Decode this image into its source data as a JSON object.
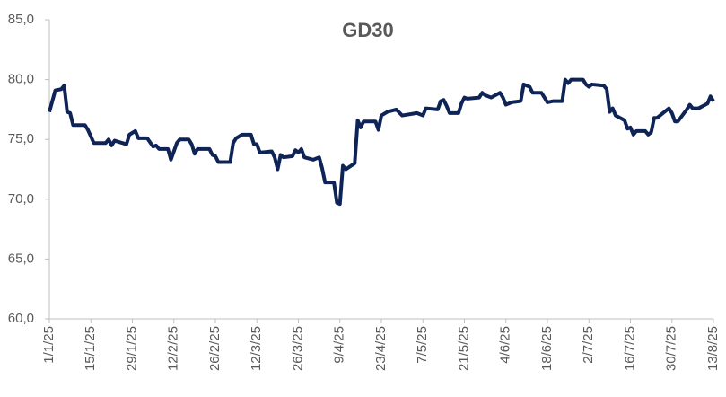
{
  "chart_data": {
    "type": "line",
    "title": "GD30",
    "x": [
      "1/1/25",
      "3/1/25",
      "5/1/25",
      "6/1/25",
      "7/1/25",
      "8/1/25",
      "9/1/25",
      "13/1/25",
      "14/1/25",
      "16/1/25",
      "20/1/25",
      "21/1/25",
      "22/1/25",
      "23/1/25",
      "27/1/25",
      "28/1/25",
      "30/1/25",
      "31/1/25",
      "3/2/25",
      "5/2/25",
      "6/2/25",
      "7/2/25",
      "10/2/25",
      "11/2/25",
      "13/2/25",
      "14/2/25",
      "17/2/25",
      "18/2/25",
      "19/2/25",
      "20/2/25",
      "24/2/25",
      "25/2/25",
      "26/2/25",
      "27/2/25",
      "3/3/25",
      "4/3/25",
      "5/3/25",
      "7/3/25",
      "10/3/25",
      "11/3/25",
      "12/3/25",
      "13/3/25",
      "17/3/25",
      "18/3/25",
      "19/3/25",
      "20/3/25",
      "21/3/25",
      "24/3/25",
      "25/3/25",
      "26/3/25",
      "27/3/25",
      "28/3/25",
      "31/3/25",
      "2/4/25",
      "3/4/25",
      "4/4/25",
      "7/4/25",
      "8/4/25",
      "9/4/25",
      "10/4/25",
      "11/4/25",
      "14/4/25",
      "15/4/25",
      "16/4/25",
      "17/4/25",
      "21/4/25",
      "22/4/25",
      "23/4/25",
      "25/4/25",
      "28/4/25",
      "30/4/25",
      "5/5/25",
      "7/5/25",
      "8/5/25",
      "12/5/25",
      "13/5/25",
      "14/5/25",
      "15/5/25",
      "16/5/25",
      "19/5/25",
      "20/5/25",
      "21/5/25",
      "22/5/25",
      "26/5/25",
      "27/5/25",
      "28/5/25",
      "30/5/25",
      "2/6/25",
      "3/6/25",
      "4/6/25",
      "6/6/25",
      "9/6/25",
      "10/6/25",
      "12/6/25",
      "13/6/25",
      "16/6/25",
      "17/6/25",
      "18/6/25",
      "20/6/25",
      "23/6/25",
      "24/6/25",
      "25/6/25",
      "26/6/25",
      "30/6/25",
      "1/7/25",
      "2/7/25",
      "3/7/25",
      "7/7/25",
      "8/7/25",
      "9/7/25",
      "10/7/25",
      "11/7/25",
      "14/7/25",
      "15/7/25",
      "16/7/25",
      "17/7/25",
      "18/7/25",
      "21/7/25",
      "22/7/25",
      "23/7/25",
      "24/7/25",
      "25/7/25",
      "28/7/25",
      "29/7/25",
      "30/7/25",
      "31/7/25",
      "1/8/25",
      "4/8/25",
      "5/8/25",
      "6/8/25",
      "7/8/25",
      "8/8/25",
      "11/8/25",
      "12/8/25",
      "13/8/25"
    ],
    "series": [
      {
        "name": "GD30",
        "color": "#0f2456",
        "values": [
          77.3,
          79.1,
          79.2,
          79.5,
          77.3,
          77.2,
          76.2,
          76.2,
          75.8,
          74.7,
          74.7,
          75.0,
          74.5,
          74.9,
          74.6,
          75.4,
          75.7,
          75.1,
          75.1,
          74.4,
          74.5,
          74.2,
          74.2,
          73.3,
          74.7,
          75.0,
          75.0,
          74.6,
          73.8,
          74.2,
          74.2,
          73.7,
          73.6,
          73.1,
          73.1,
          74.7,
          75.1,
          75.4,
          75.4,
          74.6,
          74.6,
          73.9,
          74.0,
          73.5,
          72.5,
          73.7,
          73.5,
          73.6,
          74.1,
          73.9,
          74.2,
          73.5,
          73.3,
          73.5,
          72.6,
          71.4,
          71.4,
          69.7,
          69.6,
          72.8,
          72.5,
          73.0,
          76.6,
          76.0,
          76.5,
          76.5,
          75.8,
          77.0,
          77.3,
          77.5,
          77.0,
          77.2,
          77.0,
          77.6,
          77.5,
          78.2,
          78.3,
          77.8,
          77.2,
          77.2,
          78.0,
          78.5,
          78.4,
          78.5,
          78.9,
          78.7,
          78.5,
          78.9,
          78.5,
          77.9,
          78.1,
          78.2,
          79.6,
          79.4,
          78.9,
          78.9,
          78.5,
          78.1,
          78.2,
          78.2,
          80.0,
          79.7,
          80.0,
          80.0,
          79.6,
          79.4,
          79.6,
          79.5,
          79.2,
          77.3,
          77.6,
          77.0,
          76.6,
          75.9,
          76.0,
          75.4,
          75.7,
          75.7,
          75.4,
          75.6,
          76.8,
          76.8,
          77.4,
          77.6,
          77.2,
          76.5,
          76.5,
          77.5,
          77.9,
          77.6,
          77.6,
          77.6,
          78.0,
          78.6,
          78.2
        ]
      }
    ],
    "xlim": [
      "1/1/25",
      "13/8/25"
    ],
    "xticks": [
      "1/1/25",
      "15/1/25",
      "29/1/25",
      "12/2/25",
      "26/2/25",
      "12/3/25",
      "26/3/25",
      "9/4/25",
      "23/4/25",
      "7/5/25",
      "21/5/25",
      "4/6/25",
      "18/6/25",
      "2/7/25",
      "16/7/25",
      "30/7/25",
      "13/8/25"
    ],
    "ylim": [
      60,
      85
    ],
    "yticks": [
      {
        "value": 60,
        "label": "60,0"
      },
      {
        "value": 65,
        "label": "65,0"
      },
      {
        "value": 70,
        "label": "70,0"
      },
      {
        "value": 75,
        "label": "75,0"
      },
      {
        "value": 80,
        "label": "80,0"
      },
      {
        "value": 85,
        "label": "85,0"
      }
    ],
    "grid": false
  }
}
